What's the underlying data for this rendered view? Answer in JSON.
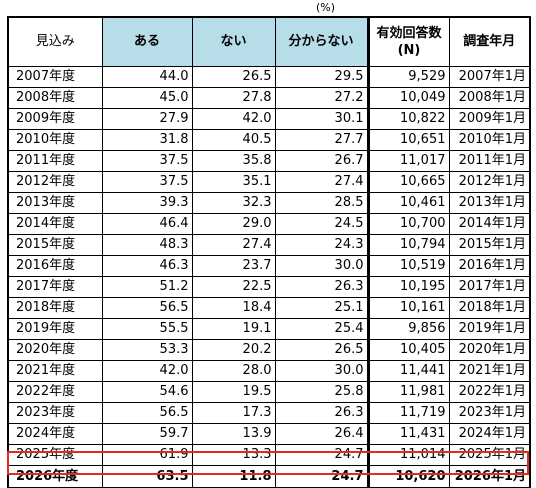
{
  "unit_label": "(%)",
  "headers": {
    "outlook": "見込み",
    "yes": "ある",
    "no": "ない",
    "unknown": "分からない",
    "responses_line1": "有効回答数",
    "responses_line2": "(N)",
    "survey_month": "調査年月"
  },
  "rows": [
    {
      "year": "2007年度",
      "yes": "44.0",
      "no": "26.5",
      "unknown": "29.5",
      "n": "9,529",
      "month": "2007年1月"
    },
    {
      "year": "2008年度",
      "yes": "45.0",
      "no": "27.8",
      "unknown": "27.2",
      "n": "10,049",
      "month": "2008年1月"
    },
    {
      "year": "2009年度",
      "yes": "27.9",
      "no": "42.0",
      "unknown": "30.1",
      "n": "10,822",
      "month": "2009年1月"
    },
    {
      "year": "2010年度",
      "yes": "31.8",
      "no": "40.5",
      "unknown": "27.7",
      "n": "10,651",
      "month": "2010年1月"
    },
    {
      "year": "2011年度",
      "yes": "37.5",
      "no": "35.8",
      "unknown": "26.7",
      "n": "11,017",
      "month": "2011年1月"
    },
    {
      "year": "2012年度",
      "yes": "37.5",
      "no": "35.1",
      "unknown": "27.4",
      "n": "10,665",
      "month": "2012年1月"
    },
    {
      "year": "2013年度",
      "yes": "39.3",
      "no": "32.3",
      "unknown": "28.5",
      "n": "10,461",
      "month": "2013年1月"
    },
    {
      "year": "2014年度",
      "yes": "46.4",
      "no": "29.0",
      "unknown": "24.5",
      "n": "10,700",
      "month": "2014年1月"
    },
    {
      "year": "2015年度",
      "yes": "48.3",
      "no": "27.4",
      "unknown": "24.3",
      "n": "10,794",
      "month": "2015年1月"
    },
    {
      "year": "2016年度",
      "yes": "46.3",
      "no": "23.7",
      "unknown": "30.0",
      "n": "10,519",
      "month": "2016年1月"
    },
    {
      "year": "2017年度",
      "yes": "51.2",
      "no": "22.5",
      "unknown": "26.3",
      "n": "10,195",
      "month": "2017年1月"
    },
    {
      "year": "2018年度",
      "yes": "56.5",
      "no": "18.4",
      "unknown": "25.1",
      "n": "10,161",
      "month": "2018年1月"
    },
    {
      "year": "2019年度",
      "yes": "55.5",
      "no": "19.1",
      "unknown": "25.4",
      "n": "9,856",
      "month": "2019年1月"
    },
    {
      "year": "2020年度",
      "yes": "53.3",
      "no": "20.2",
      "unknown": "26.5",
      "n": "10,405",
      "month": "2020年1月"
    },
    {
      "year": "2021年度",
      "yes": "42.0",
      "no": "28.0",
      "unknown": "30.0",
      "n": "11,441",
      "month": "2021年1月"
    },
    {
      "year": "2022年度",
      "yes": "54.6",
      "no": "19.5",
      "unknown": "25.8",
      "n": "11,981",
      "month": "2022年1月"
    },
    {
      "year": "2023年度",
      "yes": "56.5",
      "no": "17.3",
      "unknown": "26.3",
      "n": "11,719",
      "month": "2023年1月"
    },
    {
      "year": "2024年度",
      "yes": "59.7",
      "no": "13.9",
      "unknown": "26.4",
      "n": "11,431",
      "month": "2024年1月"
    },
    {
      "year": "2025年度",
      "yes": "61.9",
      "no": "13.3",
      "unknown": "24.7",
      "n": "11,014",
      "month": "2025年1月"
    },
    {
      "year": "2026年度",
      "yes": "63.5",
      "no": "11.8",
      "unknown": "24.7",
      "n": "10,620",
      "month": "2026年1月"
    }
  ],
  "colors": {
    "header_highlight": "#b7dee8",
    "final_row_outline": "#e32b24"
  }
}
